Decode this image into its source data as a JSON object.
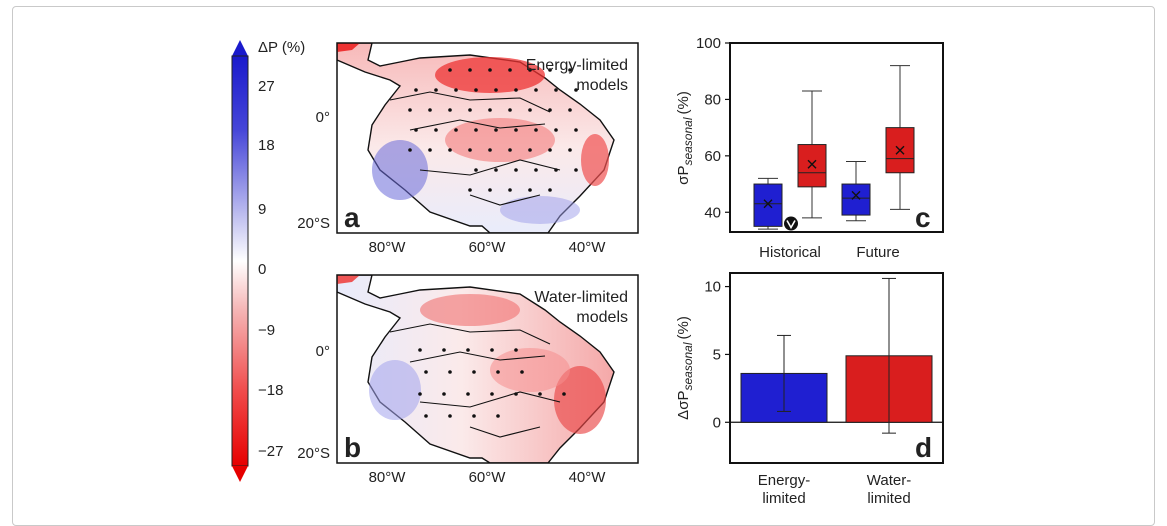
{
  "colorbar": {
    "label": "ΔP (%)",
    "ticks": [
      "27",
      "18",
      "9",
      "0",
      "−9",
      "−18",
      "−27"
    ],
    "tick_values": [
      27,
      18,
      9,
      0,
      -9,
      -18,
      -27
    ],
    "range": [
      -30,
      30
    ],
    "colors": {
      "negative_max": "#e60000",
      "neutral": "#ffffff",
      "positive_max": "#1a1acc"
    }
  },
  "maps": [
    {
      "panel": "a",
      "title": [
        "Energy-limited",
        "models"
      ],
      "y_ticks": [
        "0°",
        "20°S"
      ],
      "x_ticks": [
        "80°W",
        "60°W",
        "40°W"
      ]
    },
    {
      "panel": "b",
      "title": [
        "Water-limited",
        "models"
      ],
      "y_ticks": [
        "0°",
        "20°S"
      ],
      "x_ticks": [
        "80°W",
        "60°W",
        "40°W"
      ]
    }
  ],
  "chart_data": [
    {
      "panel": "c",
      "type": "box",
      "ylabel_main": "σP",
      "ylabel_sub": "seasonal",
      "ylabel_unit": "(%)",
      "ylim": [
        33,
        100
      ],
      "yticks": [
        40,
        60,
        80,
        100
      ],
      "ytick_labels": [
        "40",
        "60",
        "80",
        "100"
      ],
      "categories": [
        "Historical",
        "Future"
      ],
      "series": [
        {
          "name": "Energy-limited",
          "color": "#1f1fd1",
          "boxes": [
            {
              "whislo": 34,
              "q1": 35,
              "med": 43,
              "q3": 50,
              "whishi": 52,
              "mean": 43
            },
            {
              "whislo": 37,
              "q1": 39,
              "med": 45,
              "q3": 50,
              "whishi": 58,
              "mean": 46
            }
          ]
        },
        {
          "name": "Water-limited",
          "color": "#d91e1e",
          "boxes": [
            {
              "whislo": 38,
              "q1": 49,
              "med": 54,
              "q3": 64,
              "whishi": 83,
              "mean": 57
            },
            {
              "whislo": 41,
              "q1": 54,
              "med": 59,
              "q3": 70,
              "whishi": 92,
              "mean": 62
            }
          ]
        }
      ],
      "marker_value": 36
    },
    {
      "panel": "d",
      "type": "bar",
      "ylabel_main": "ΔσP",
      "ylabel_sub": "seasonal",
      "ylabel_unit": "(%)",
      "ylim": [
        -3,
        11
      ],
      "yticks": [
        0,
        5,
        10
      ],
      "ytick_labels": [
        "0",
        "5",
        "10"
      ],
      "categories": [
        [
          "Energy-",
          "limited"
        ],
        [
          "Water-",
          "limited"
        ]
      ],
      "values": [
        3.6,
        4.9
      ],
      "err_low": [
        0.8,
        -0.8
      ],
      "err_high": [
        6.4,
        10.6
      ],
      "colors": [
        "#1f1fd1",
        "#d91e1e"
      ]
    }
  ]
}
